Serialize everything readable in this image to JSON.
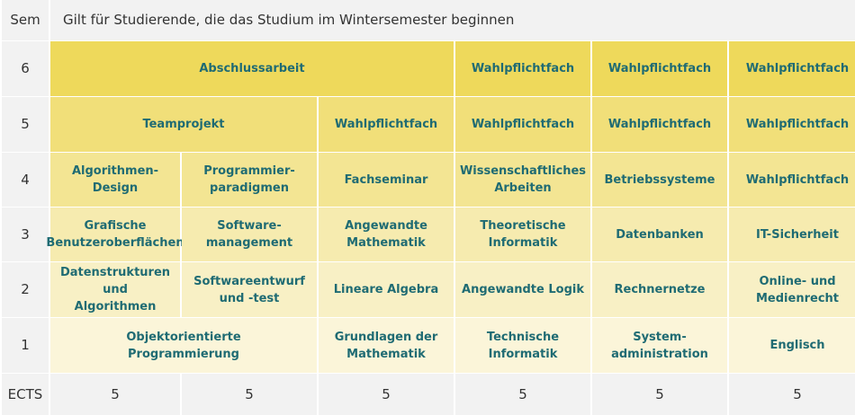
{
  "header": {
    "sem_label": "Sem",
    "title": "Gilt für Studierende, die das Studium im Wintersemester beginnen"
  },
  "rows": {
    "r6": {
      "sem": "6",
      "c1": "Abschlussarbeit",
      "c4": "Wahlpflichtfach",
      "c5": "Wahlpflichtfach",
      "c6": "Wahlpflichtfach"
    },
    "r5": {
      "sem": "5",
      "c1": "Teamprojekt",
      "c3": "Wahlpflichtfach",
      "c4": "Wahlpflichtfach",
      "c5": "Wahlpflichtfach",
      "c6": "Wahlpflichtfach"
    },
    "r4": {
      "sem": "4",
      "c1": "Algorithmen-\nDesign",
      "c2": "Programmier-\nparadigmen",
      "c3": "Fachseminar",
      "c4": "Wissenschaftliches\nArbeiten",
      "c5": "Betriebssysteme",
      "c6": "Wahlpflichtfach"
    },
    "r3": {
      "sem": "3",
      "c1": "Grafische\nBenutzeroberflächen",
      "c2": "Software-\nmanagement",
      "c3": "Angewandte\nMathematik",
      "c4": "Theoretische\nInformatik",
      "c5": "Datenbanken",
      "c6": "IT-Sicherheit"
    },
    "r2": {
      "sem": "2",
      "c1": "Datenstrukturen und\nAlgorithmen",
      "c2": "Softwareentwurf\nund -test",
      "c3": "Lineare Algebra",
      "c4": "Angewandte Logik",
      "c5": "Rechnernetze",
      "c6": "Online- und\nMedienrecht"
    },
    "r1": {
      "sem": "1",
      "c1": "Objektorientierte\nProgrammierung",
      "c3": "Grundlagen der\nMathematik",
      "c4": "Technische\nInformatik",
      "c5": "System-\nadministration",
      "c6": "Englisch"
    }
  },
  "ects": {
    "label": "ECTS",
    "values": [
      "5",
      "5",
      "5",
      "5",
      "5",
      "5"
    ]
  },
  "colors": {
    "header_bg": "#f2f2f2",
    "text_course": "#1f6b73",
    "row6": "#eed95b",
    "row5": "#f1df79",
    "row4": "#f3e593",
    "row3": "#f6ebaf",
    "row2": "#f8f0c5",
    "row1": "#fbf5d9"
  }
}
